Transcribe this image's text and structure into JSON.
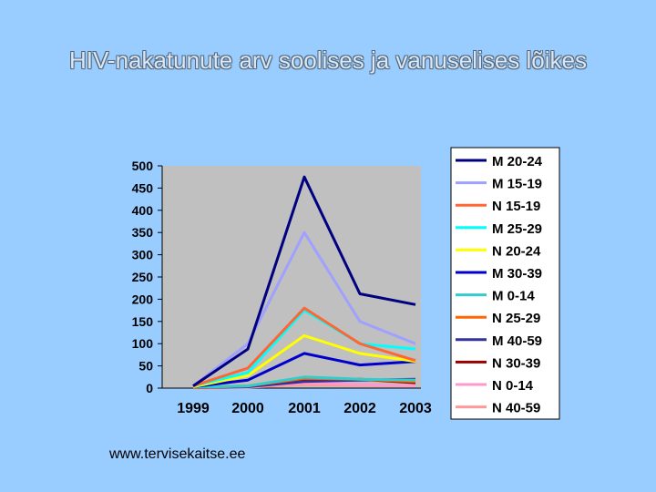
{
  "slide": {
    "title": "HIV-nakatunute arv soolises ja vanuselises lõikes",
    "footer": "www.tervisekaitse.ee"
  },
  "chart_data": {
    "type": "line",
    "title": "",
    "xlabel": "",
    "ylabel": "",
    "x": [
      "1999",
      "2000",
      "2001",
      "2002",
      "2003"
    ],
    "ylim": [
      0,
      500
    ],
    "yticks": [
      0,
      50,
      100,
      150,
      200,
      250,
      300,
      350,
      400,
      450,
      500
    ],
    "grid": false,
    "plot_background": "#c0c0c0",
    "legend_position": "right",
    "series": [
      {
        "name": "M 20-24",
        "color": "#000080",
        "values": [
          5,
          88,
          475,
          212,
          188
        ]
      },
      {
        "name": "M 15-19",
        "color": "#a0a0ff",
        "values": [
          5,
          100,
          350,
          150,
          100
        ]
      },
      {
        "name": "N 15-19",
        "color": "#ff6633",
        "values": [
          5,
          45,
          180,
          100,
          62
        ]
      },
      {
        "name": "M 25-29",
        "color": "#00ffff",
        "values": [
          5,
          35,
          175,
          100,
          88
        ]
      },
      {
        "name": "N 20-24",
        "color": "#ffff00",
        "values": [
          3,
          28,
          118,
          78,
          60
        ]
      },
      {
        "name": "M 30-39",
        "color": "#0000cc",
        "values": [
          3,
          18,
          78,
          52,
          60
        ]
      },
      {
        "name": "M 0-14",
        "color": "#33cccc",
        "values": [
          2,
          5,
          25,
          20,
          18
        ]
      },
      {
        "name": "N 25-29",
        "color": "#ff6600",
        "values": [
          1,
          5,
          22,
          20,
          15
        ]
      },
      {
        "name": "M 40-59",
        "color": "#333399",
        "values": [
          1,
          3,
          15,
          18,
          20
        ]
      },
      {
        "name": "N 30-39",
        "color": "#990000",
        "values": [
          1,
          4,
          18,
          20,
          12
        ]
      },
      {
        "name": "N 0-14",
        "color": "#ff99cc",
        "values": [
          1,
          3,
          12,
          8,
          5
        ]
      },
      {
        "name": "N 40-59",
        "color": "#ff9999",
        "values": [
          0,
          2,
          8,
          6,
          5
        ]
      }
    ]
  }
}
